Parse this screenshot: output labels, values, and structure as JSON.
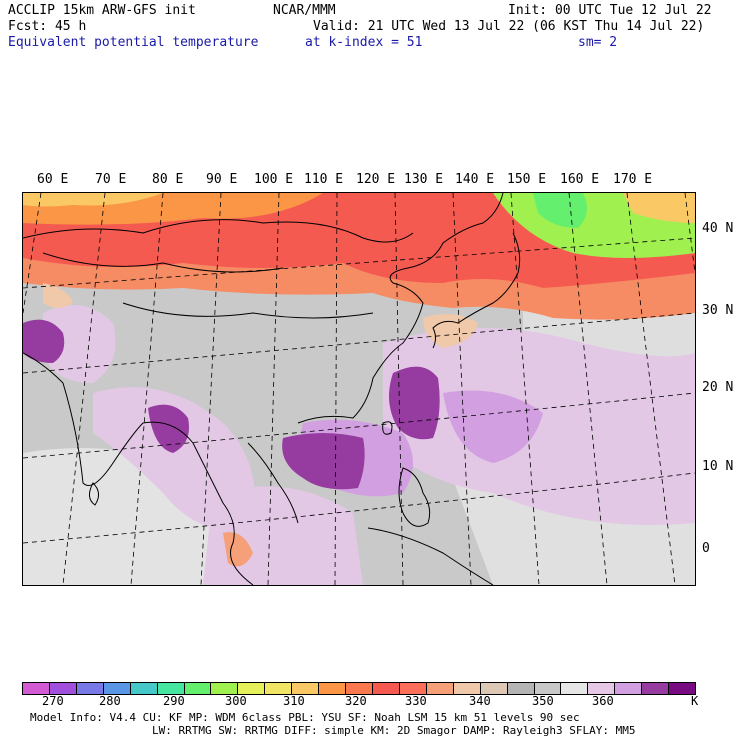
{
  "header": {
    "model": "ACCLIP 15km ARW-GFS init",
    "org": "NCAR/MMM",
    "init": "Init: 00 UTC Tue 12 Jul 22",
    "fcst": "Fcst:   45 h",
    "valid": "Valid: 21 UTC Wed 13 Jul 22 (06 KST Thu 14 Jul 22)",
    "field": "Equivalent potential temperature",
    "level": "at k-index =  51",
    "smooth": "sm= 2"
  },
  "map": {
    "lon_labels": [
      "60 E",
      "70 E",
      "80 E",
      "90 E",
      "100 E",
      "110 E",
      "120 E",
      "130 E",
      "140 E",
      "150 E",
      "160 E",
      "170 E"
    ],
    "lat_labels": [
      "40 N",
      "30 N",
      "20 N",
      "10 N",
      "0"
    ]
  },
  "colorbar": {
    "colors": [
      "#d25ad2",
      "#a050dc",
      "#7878e6",
      "#5a96e6",
      "#46c8c8",
      "#46e6a0",
      "#64f06e",
      "#a0f050",
      "#e6f05a",
      "#f0e664",
      "#fac864",
      "#fa9646",
      "#fa7850",
      "#f55a50",
      "#fa6e5a",
      "#f5a078",
      "#f0c8aa",
      "#dcc8b4",
      "#b4b4b4",
      "#c8c8c8",
      "#e6e6e6",
      "#e6c8e6",
      "#d2a0e1",
      "#963ca0",
      "#780a82"
    ],
    "labels": [
      "270",
      "280",
      "290",
      "300",
      "310",
      "320",
      "330",
      "340",
      "350",
      "360"
    ],
    "unit": "K"
  },
  "footer": {
    "line1": "Model Info: V4.4    CU: KF    MP: WDM 6class  PBL: YSU    SF: Noah LSM    15 km   51 levels   90 sec",
    "line2": "LW: RRTMG   SW: RRTMG  DIFF: simple KM: 2D Smagor DAMP: Rayleigh3  SFLAY: MM5"
  }
}
